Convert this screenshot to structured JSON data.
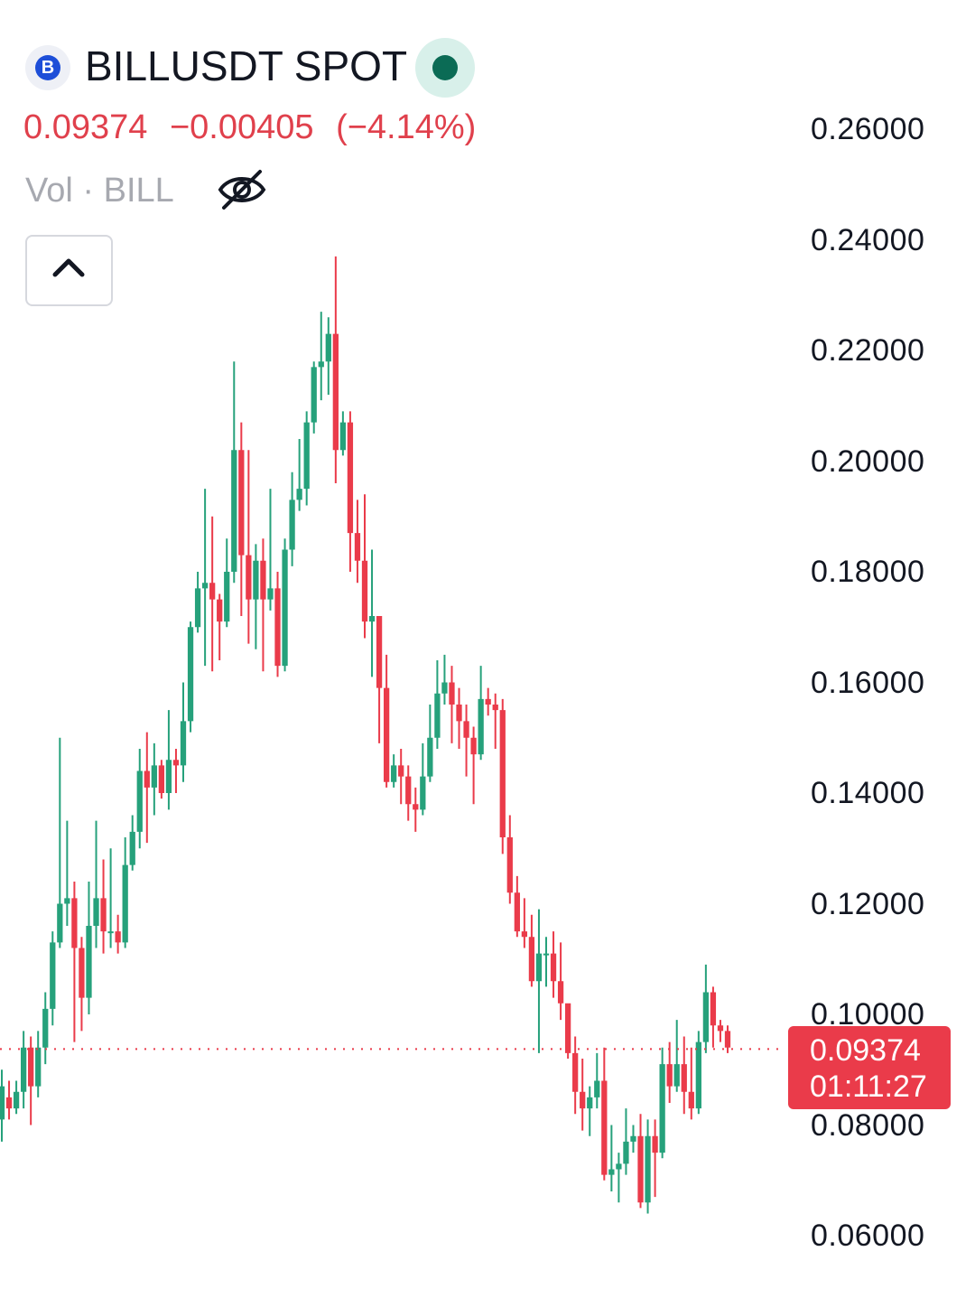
{
  "header": {
    "coin_icon": "bill-coin-icon",
    "coin_glyph": "B",
    "symbol": "BILLUSDT SPOT",
    "status_icon": "market-open-dot-icon",
    "price": "0.09374",
    "change": "−0.00405",
    "change_pct": "(−4.14%)",
    "volume_label": "Vol · BILL",
    "visibility_icon": "eye-off-icon",
    "collapse_icon": "chevron-up-icon"
  },
  "colors": {
    "up": "#26a17b",
    "down": "#ea3b4a",
    "text": "#131722",
    "muted": "#a7a9b0"
  },
  "y_axis": {
    "ticks": [
      "0.26000",
      "0.24000",
      "0.22000",
      "0.20000",
      "0.18000",
      "0.16000",
      "0.14000",
      "0.12000",
      "0.10000",
      "0.08000",
      "0.06000"
    ]
  },
  "current": {
    "price": "0.09374",
    "countdown": "01:11:27"
  },
  "chart_data": {
    "type": "candlestick",
    "ylim": [
      0.05,
      0.27
    ],
    "current_price": 0.09374,
    "candles": [
      [
        0.081,
        0.087,
        0.077,
        0.09
      ],
      [
        0.085,
        0.083,
        0.081,
        0.088
      ],
      [
        0.083,
        0.086,
        0.082,
        0.088
      ],
      [
        0.086,
        0.094,
        0.083,
        0.097
      ],
      [
        0.094,
        0.087,
        0.08,
        0.096
      ],
      [
        0.087,
        0.094,
        0.085,
        0.097
      ],
      [
        0.094,
        0.101,
        0.091,
        0.104
      ],
      [
        0.101,
        0.113,
        0.098,
        0.115
      ],
      [
        0.113,
        0.12,
        0.112,
        0.15
      ],
      [
        0.12,
        0.121,
        0.116,
        0.135
      ],
      [
        0.121,
        0.112,
        0.095,
        0.124
      ],
      [
        0.112,
        0.103,
        0.097,
        0.114
      ],
      [
        0.103,
        0.116,
        0.1,
        0.124
      ],
      [
        0.116,
        0.121,
        0.112,
        0.135
      ],
      [
        0.121,
        0.115,
        0.111,
        0.128
      ],
      [
        0.115,
        0.115,
        0.112,
        0.13
      ],
      [
        0.115,
        0.113,
        0.111,
        0.118
      ],
      [
        0.113,
        0.127,
        0.112,
        0.132
      ],
      [
        0.127,
        0.133,
        0.126,
        0.136
      ],
      [
        0.133,
        0.144,
        0.13,
        0.148
      ],
      [
        0.144,
        0.141,
        0.131,
        0.151
      ],
      [
        0.141,
        0.145,
        0.136,
        0.149
      ],
      [
        0.145,
        0.14,
        0.139,
        0.146
      ],
      [
        0.14,
        0.146,
        0.137,
        0.155
      ],
      [
        0.146,
        0.145,
        0.14,
        0.148
      ],
      [
        0.145,
        0.153,
        0.142,
        0.16
      ],
      [
        0.153,
        0.17,
        0.151,
        0.171
      ],
      [
        0.17,
        0.177,
        0.169,
        0.18
      ],
      [
        0.177,
        0.178,
        0.163,
        0.195
      ],
      [
        0.178,
        0.175,
        0.162,
        0.19
      ],
      [
        0.175,
        0.171,
        0.164,
        0.176
      ],
      [
        0.171,
        0.18,
        0.17,
        0.186
      ],
      [
        0.18,
        0.202,
        0.178,
        0.218
      ],
      [
        0.202,
        0.183,
        0.172,
        0.207
      ],
      [
        0.183,
        0.175,
        0.167,
        0.202
      ],
      [
        0.175,
        0.182,
        0.166,
        0.185
      ],
      [
        0.182,
        0.175,
        0.162,
        0.186
      ],
      [
        0.175,
        0.177,
        0.173,
        0.195
      ],
      [
        0.177,
        0.163,
        0.161,
        0.18
      ],
      [
        0.163,
        0.184,
        0.162,
        0.186
      ],
      [
        0.184,
        0.193,
        0.181,
        0.198
      ],
      [
        0.193,
        0.195,
        0.191,
        0.204
      ],
      [
        0.195,
        0.207,
        0.192,
        0.209
      ],
      [
        0.207,
        0.217,
        0.205,
        0.218
      ],
      [
        0.217,
        0.218,
        0.211,
        0.227
      ],
      [
        0.218,
        0.223,
        0.212,
        0.226
      ],
      [
        0.223,
        0.202,
        0.196,
        0.237
      ],
      [
        0.202,
        0.207,
        0.201,
        0.209
      ],
      [
        0.207,
        0.187,
        0.18,
        0.209
      ],
      [
        0.187,
        0.182,
        0.178,
        0.193
      ],
      [
        0.182,
        0.171,
        0.168,
        0.194
      ],
      [
        0.171,
        0.172,
        0.161,
        0.184
      ],
      [
        0.172,
        0.159,
        0.149,
        0.172
      ],
      [
        0.159,
        0.142,
        0.141,
        0.165
      ],
      [
        0.142,
        0.145,
        0.141,
        0.147
      ],
      [
        0.145,
        0.143,
        0.138,
        0.148
      ],
      [
        0.143,
        0.138,
        0.135,
        0.145
      ],
      [
        0.138,
        0.137,
        0.133,
        0.141
      ],
      [
        0.137,
        0.143,
        0.136,
        0.149
      ],
      [
        0.143,
        0.15,
        0.142,
        0.156
      ],
      [
        0.15,
        0.158,
        0.148,
        0.164
      ],
      [
        0.158,
        0.16,
        0.156,
        0.165
      ],
      [
        0.16,
        0.156,
        0.149,
        0.163
      ],
      [
        0.156,
        0.153,
        0.148,
        0.159
      ],
      [
        0.153,
        0.15,
        0.143,
        0.156
      ],
      [
        0.15,
        0.147,
        0.138,
        0.152
      ],
      [
        0.147,
        0.157,
        0.146,
        0.163
      ],
      [
        0.157,
        0.156,
        0.154,
        0.159
      ],
      [
        0.156,
        0.155,
        0.148,
        0.158
      ],
      [
        0.155,
        0.132,
        0.129,
        0.157
      ],
      [
        0.132,
        0.122,
        0.12,
        0.136
      ],
      [
        0.122,
        0.115,
        0.114,
        0.125
      ],
      [
        0.115,
        0.114,
        0.112,
        0.121
      ],
      [
        0.114,
        0.106,
        0.105,
        0.118
      ],
      [
        0.106,
        0.111,
        0.093,
        0.119
      ],
      [
        0.111,
        0.111,
        0.105,
        0.114
      ],
      [
        0.111,
        0.106,
        0.103,
        0.115
      ],
      [
        0.106,
        0.102,
        0.099,
        0.113
      ],
      [
        0.102,
        0.093,
        0.092,
        0.101
      ],
      [
        0.093,
        0.086,
        0.082,
        0.096
      ],
      [
        0.086,
        0.083,
        0.079,
        0.092
      ],
      [
        0.083,
        0.085,
        0.078,
        0.087
      ],
      [
        0.085,
        0.088,
        0.083,
        0.093
      ],
      [
        0.088,
        0.071,
        0.07,
        0.094
      ],
      [
        0.071,
        0.072,
        0.068,
        0.08
      ],
      [
        0.072,
        0.073,
        0.066,
        0.075
      ],
      [
        0.073,
        0.077,
        0.071,
        0.083
      ],
      [
        0.077,
        0.078,
        0.075,
        0.08
      ],
      [
        0.078,
        0.066,
        0.065,
        0.082
      ],
      [
        0.066,
        0.078,
        0.064,
        0.081
      ],
      [
        0.078,
        0.075,
        0.067,
        0.081
      ],
      [
        0.075,
        0.091,
        0.074,
        0.094
      ],
      [
        0.091,
        0.087,
        0.084,
        0.095
      ],
      [
        0.087,
        0.091,
        0.086,
        0.099
      ],
      [
        0.091,
        0.086,
        0.082,
        0.096
      ],
      [
        0.086,
        0.083,
        0.081,
        0.094
      ],
      [
        0.083,
        0.095,
        0.082,
        0.097
      ],
      [
        0.095,
        0.104,
        0.093,
        0.109
      ],
      [
        0.104,
        0.098,
        0.094,
        0.105
      ],
      [
        0.098,
        0.097,
        0.095,
        0.099
      ],
      [
        0.097,
        0.094,
        0.093,
        0.098
      ]
    ]
  }
}
